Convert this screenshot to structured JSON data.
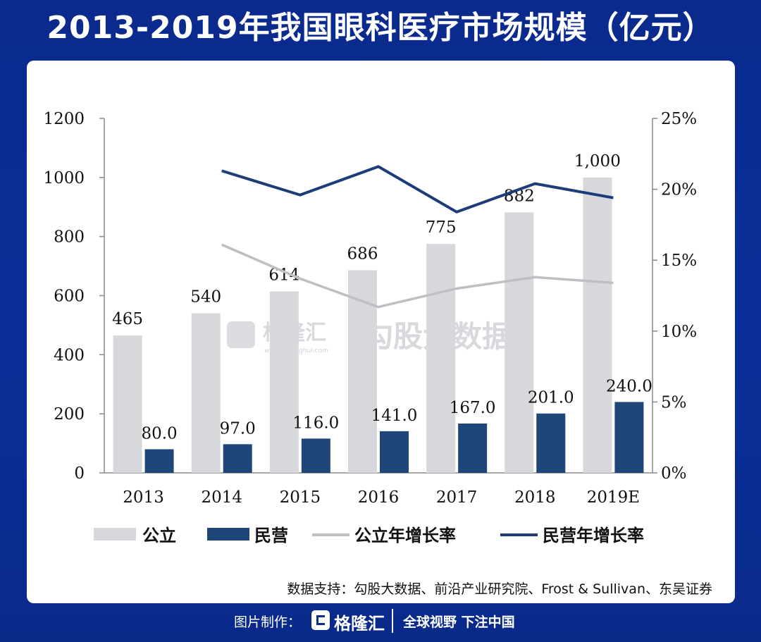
{
  "title": "2013-2019年我国眼科医疗市场规模（亿元）",
  "watermark": {
    "brand": "格隆汇",
    "sub": "www.gelonghui.com",
    "product": "勾股大数据"
  },
  "source": "数据支持：勾股大数据、前沿产业研究院、Frost & Sullivan、东吴证券",
  "footer": {
    "made_by": "图片制作：",
    "brand": "格隆汇",
    "slogan": "全球视野 下注中国"
  },
  "chart_data": {
    "type": "bar",
    "categories": [
      "2013",
      "2014",
      "2015",
      "2016",
      "2017",
      "2018",
      "2019E"
    ],
    "series": [
      {
        "name": "公立",
        "type": "bar",
        "color": "#d6d8dc",
        "values": [
          465,
          540,
          614,
          686,
          775,
          882,
          1000
        ],
        "labels": [
          "465",
          "540",
          "614",
          "686",
          "775",
          "882",
          "1,000"
        ]
      },
      {
        "name": "民营",
        "type": "bar",
        "color": "#1f4678",
        "values": [
          80.0,
          97.0,
          116.0,
          141.0,
          167.0,
          201.0,
          240.0
        ],
        "labels": [
          "80.0",
          "97.0",
          "116.0",
          "141.0",
          "167.0",
          "201.0",
          "240.0"
        ]
      },
      {
        "name": "公立年增长率",
        "type": "line",
        "axis": "right",
        "color": "#bdbfc3",
        "values": [
          null,
          16.1,
          13.7,
          11.7,
          13.0,
          13.8,
          13.4
        ]
      },
      {
        "name": "民营年增长率",
        "type": "line",
        "axis": "right",
        "color": "#1c3d78",
        "values": [
          null,
          21.3,
          19.6,
          21.6,
          18.4,
          20.4,
          19.4
        ]
      }
    ],
    "y_left": {
      "min": 0,
      "max": 1200,
      "ticks": [
        "0",
        "200",
        "400",
        "600",
        "800",
        "1000",
        "1200"
      ]
    },
    "y_right": {
      "min": 0,
      "max": 25,
      "ticks": [
        "0%",
        "5%",
        "10%",
        "15%",
        "20%",
        "25%"
      ]
    },
    "legend": [
      "公立",
      "民营",
      "公立年增长率",
      "民营年增长率"
    ],
    "legend_position": "bottom"
  }
}
